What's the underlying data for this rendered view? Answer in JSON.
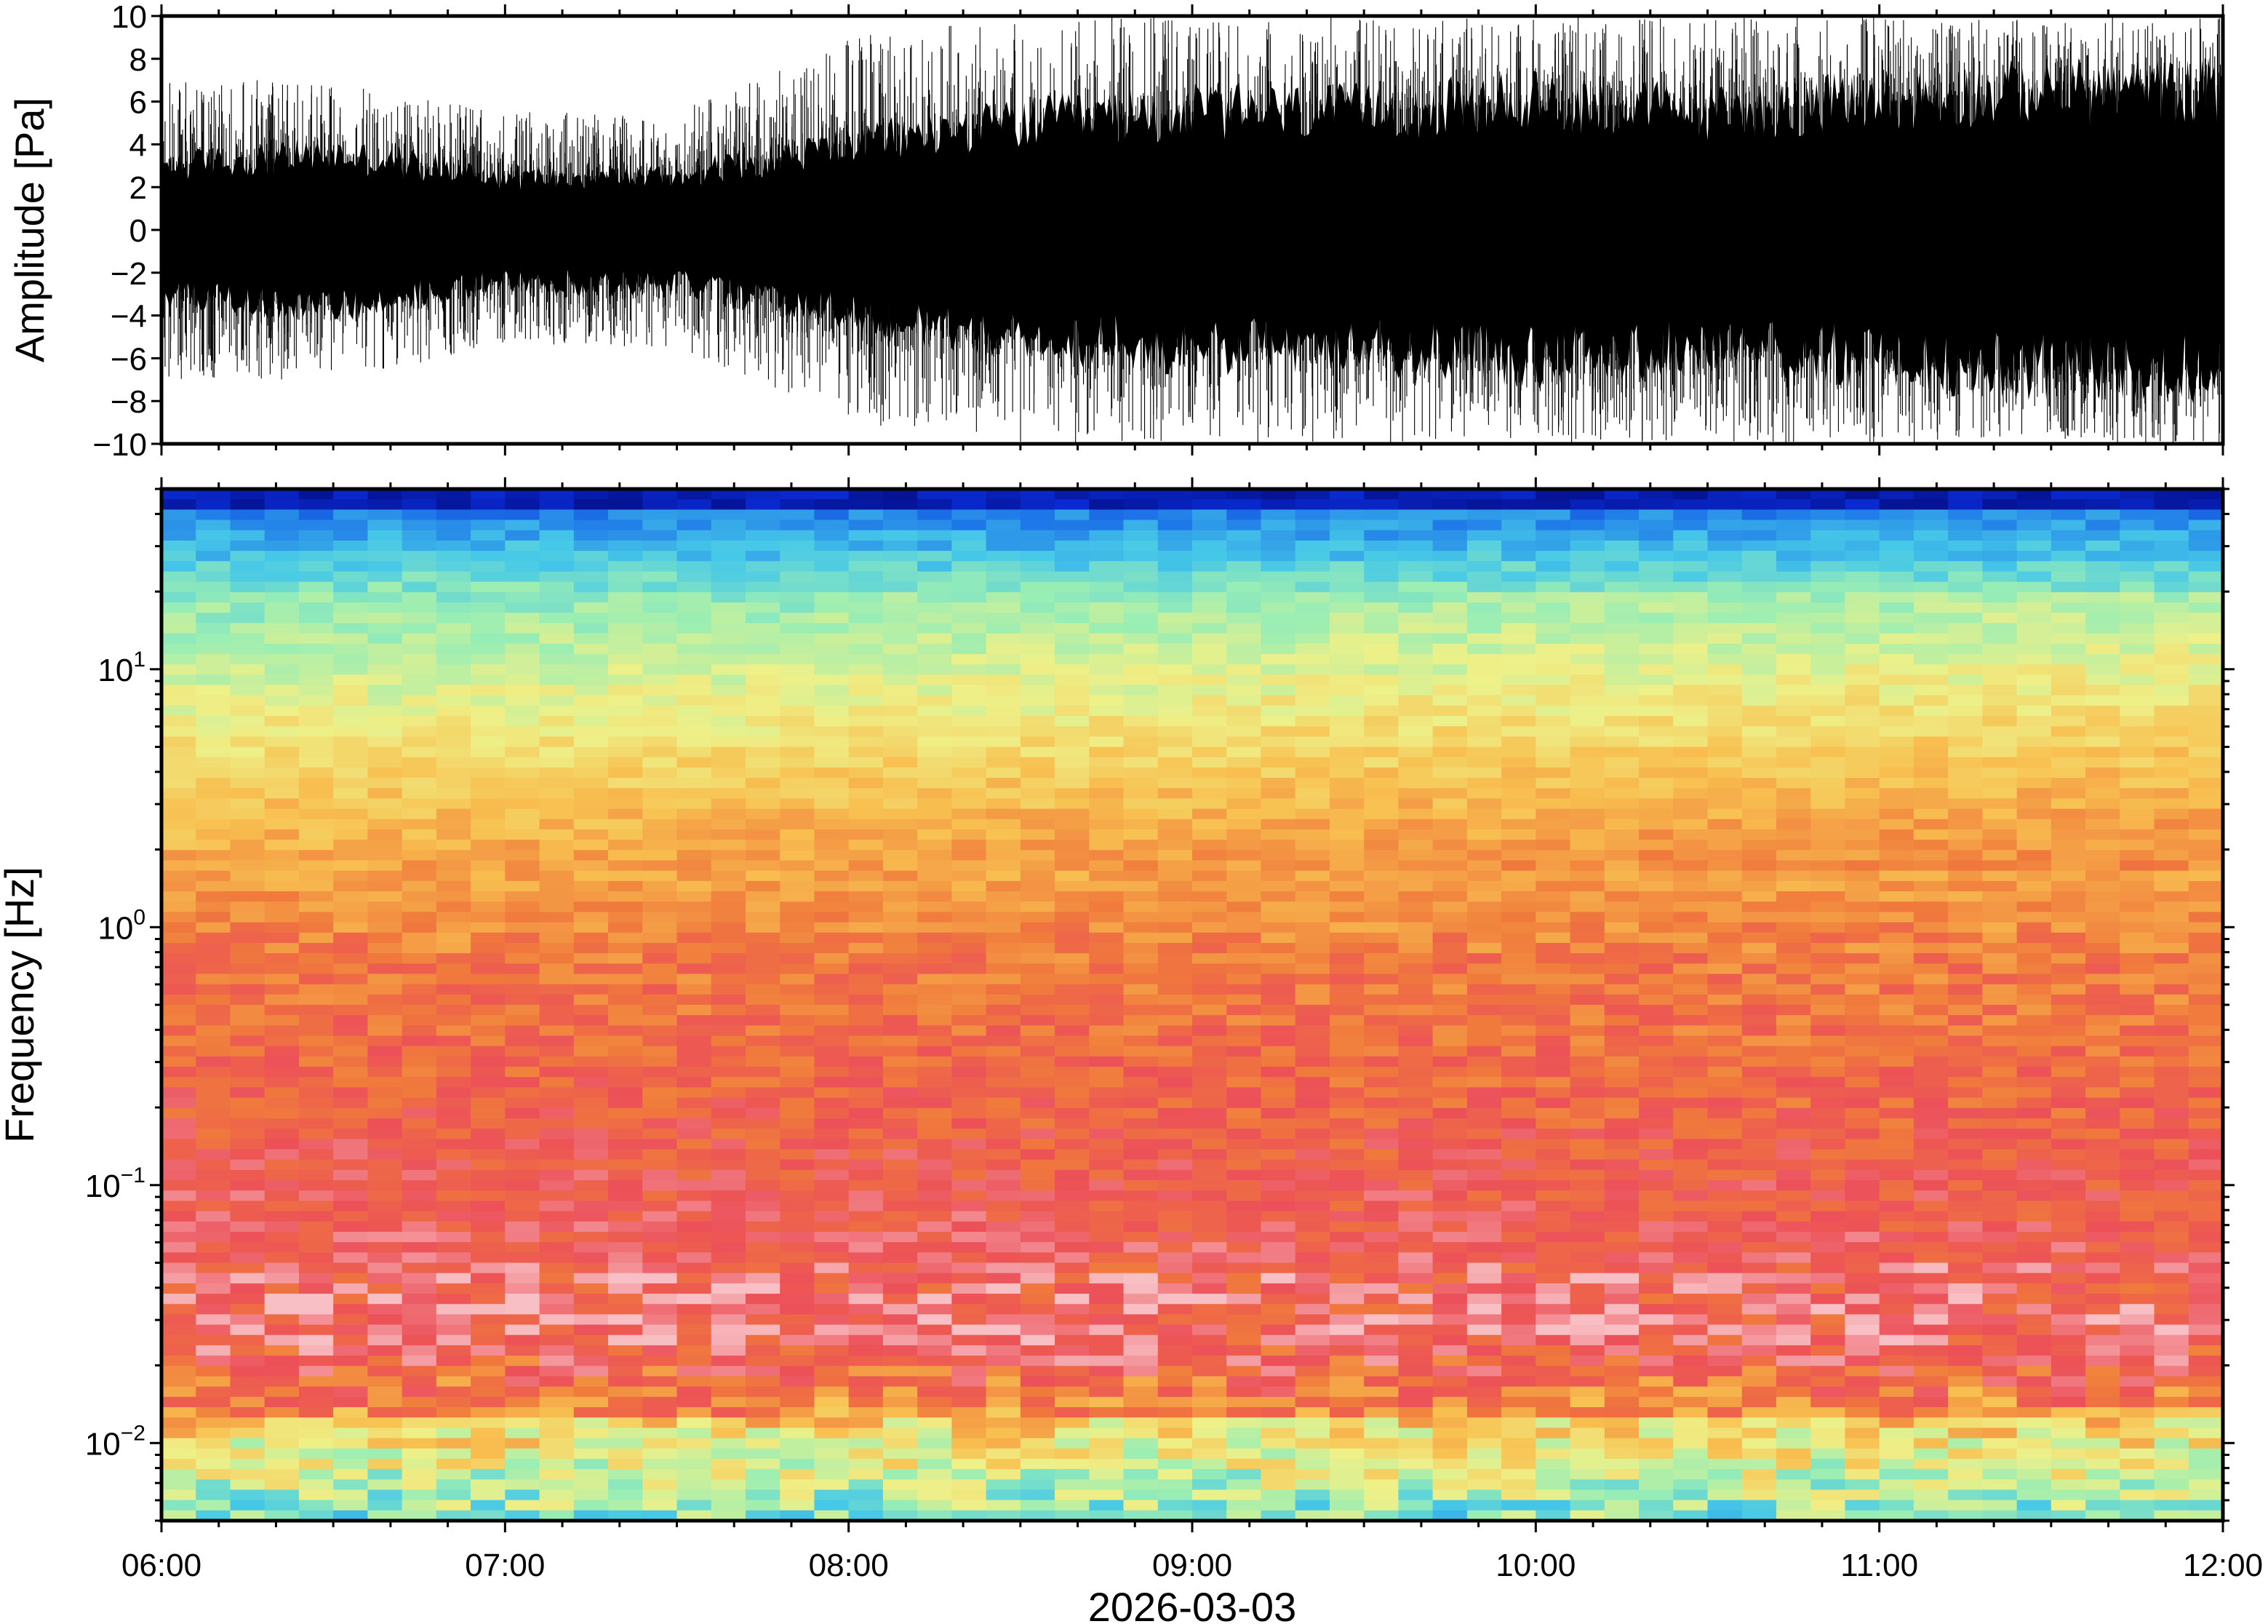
{
  "chart_data": [
    {
      "type": "line",
      "panel": "waveform",
      "title": "",
      "xlabel": "",
      "ylabel": "Amplitude [Pa]",
      "ylim": [
        -10,
        10
      ],
      "xlim": [
        "06:00",
        "12:00"
      ],
      "y_ticks": [
        "−10",
        "−8",
        "−6",
        "−4",
        "−2",
        "0",
        "2",
        "4",
        "6",
        "8",
        "10"
      ],
      "y_tick_values": [
        -10,
        -8,
        -6,
        -4,
        -2,
        0,
        2,
        4,
        6,
        8,
        10
      ],
      "envelope": {
        "x_hours": [
          6.0,
          6.5,
          7.0,
          7.5,
          8.0,
          8.5,
          9.0,
          9.5,
          10.0,
          10.5,
          11.0,
          11.5,
          12.0
        ],
        "typical_peak_pa": [
          3,
          3.5,
          2.5,
          2.5,
          4,
          5,
          5.5,
          5.5,
          6,
          5.5,
          6,
          6.5,
          6.5
        ],
        "max_peak_pa": [
          7,
          7,
          5.5,
          5.5,
          9,
          10,
          10,
          10,
          10,
          10,
          10,
          10,
          10
        ]
      },
      "color": "#000000",
      "grid": false
    },
    {
      "type": "heatmap",
      "panel": "spectrogram",
      "title": "",
      "xlabel": "",
      "ylabel": "Frequency [Hz]",
      "yscale": "log",
      "ylim": [
        0.005,
        50
      ],
      "y_ticks": [
        {
          "base": "10",
          "exp": "1",
          "value": 10
        },
        {
          "base": "10",
          "exp": "0",
          "value": 1
        },
        {
          "base": "10",
          "exp": "−1",
          "value": 0.1
        },
        {
          "base": "10",
          "exp": "−2",
          "value": 0.01
        }
      ],
      "colormap": [
        "#000060",
        "#0a2ad2",
        "#1e78e8",
        "#46c8e8",
        "#9aeeb4",
        "#eef088",
        "#f8c050",
        "#f07a3c",
        "#ec5058",
        "#f8c0c4"
      ],
      "time_bins": 60,
      "freq_bins": 100,
      "grid": false
    }
  ],
  "x_axis": {
    "ticks": [
      "06:00",
      "07:00",
      "08:00",
      "09:00",
      "10:00",
      "11:00",
      "12:00"
    ],
    "date_label": "2026-03-03"
  }
}
